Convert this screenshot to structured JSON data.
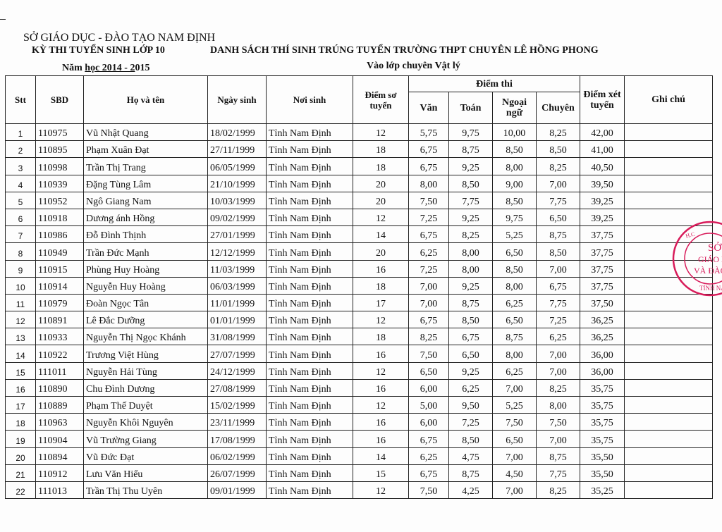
{
  "header": {
    "department": "SỞ GIÁO DỤC - ĐÀO TẠO NAM ĐỊNH",
    "exam": "KỲ THI TUYỂN SINH LỚP 10",
    "title": "DANH SÁCH THÍ SINH TRÚNG TUYỂN TRƯỜNG THPT CHUYÊN LÊ HỒNG PHONG",
    "year_prefix": "Năm ",
    "year_underlined": "học 2014 - 2",
    "year_suffix": "015",
    "class": "Vào lớp chuyên Vật lý"
  },
  "columns": {
    "stt": "Stt",
    "sbd": "SBD",
    "name": "Họ và tên",
    "dob": "Ngày sinh",
    "birthplace": "Nơi sinh",
    "prelim": "Điểm sơ tuyển",
    "scores_group": "Điểm thi",
    "van": "Văn",
    "toan": "Toán",
    "ngoai_ngu": "Ngoại ngữ",
    "chuyen": "Chuyên",
    "total": "Điểm xét tuyển",
    "note": "Ghi chú"
  },
  "rows": [
    {
      "stt": "1",
      "sbd": "110975",
      "name": "Vũ Nhật Quang",
      "dob": "18/02/1999",
      "place": "Tỉnh Nam Định",
      "prelim": "12",
      "van": "5,75",
      "toan": "9,75",
      "nn": "10,00",
      "chuyen": "8,25",
      "total": "42,00",
      "note": ""
    },
    {
      "stt": "2",
      "sbd": "110895",
      "name": "Phạm Xuân Đạt",
      "dob": "27/11/1999",
      "place": "Tỉnh Nam Định",
      "prelim": "18",
      "van": "6,75",
      "toan": "8,75",
      "nn": "8,50",
      "chuyen": "8,50",
      "total": "41,00",
      "note": ""
    },
    {
      "stt": "3",
      "sbd": "110998",
      "name": "Trần Thị Trang",
      "dob": "06/05/1999",
      "place": "Tỉnh Nam Định",
      "prelim": "18",
      "van": "6,75",
      "toan": "9,25",
      "nn": "8,00",
      "chuyen": "8,25",
      "total": "40,50",
      "note": ""
    },
    {
      "stt": "4",
      "sbd": "110939",
      "name": "Đặng Tùng Lâm",
      "dob": "21/10/1999",
      "place": "Tỉnh Nam Định",
      "prelim": "20",
      "van": "8,00",
      "toan": "8,50",
      "nn": "9,00",
      "chuyen": "7,00",
      "total": "39,50",
      "note": ""
    },
    {
      "stt": "5",
      "sbd": "110952",
      "name": "Ngô Giang Nam",
      "dob": "10/03/1999",
      "place": "Tỉnh Nam Định",
      "prelim": "20",
      "van": "7,50",
      "toan": "7,75",
      "nn": "8,50",
      "chuyen": "7,75",
      "total": "39,25",
      "note": ""
    },
    {
      "stt": "6",
      "sbd": "110918",
      "name": "Dương ánh Hồng",
      "dob": "09/02/1999",
      "place": "Tỉnh Nam Định",
      "prelim": "12",
      "van": "7,25",
      "toan": "9,25",
      "nn": "9,75",
      "chuyen": "6,50",
      "total": "39,25",
      "note": ""
    },
    {
      "stt": "7",
      "sbd": "110986",
      "name": "Đỗ Đình Thịnh",
      "dob": "27/01/1999",
      "place": "Tỉnh Nam Định",
      "prelim": "14",
      "van": "6,75",
      "toan": "8,25",
      "nn": "5,25",
      "chuyen": "8,75",
      "total": "37,75",
      "note": ""
    },
    {
      "stt": "8",
      "sbd": "110949",
      "name": "Trần Đức Mạnh",
      "dob": "12/12/1999",
      "place": "Tỉnh Nam Định",
      "prelim": "20",
      "van": "6,25",
      "toan": "8,00",
      "nn": "6,50",
      "chuyen": "8,50",
      "total": "37,75",
      "note": ""
    },
    {
      "stt": "9",
      "sbd": "110915",
      "name": "Phùng Huy Hoàng",
      "dob": "11/03/1999",
      "place": "Tỉnh Nam Định",
      "prelim": "16",
      "van": "7,25",
      "toan": "8,00",
      "nn": "8,50",
      "chuyen": "7,00",
      "total": "37,75",
      "note": ""
    },
    {
      "stt": "10",
      "sbd": "110914",
      "name": "Nguyễn Huy Hoàng",
      "dob": "06/03/1999",
      "place": "Tỉnh Nam Định",
      "prelim": "18",
      "van": "7,00",
      "toan": "9,25",
      "nn": "8,00",
      "chuyen": "6,75",
      "total": "37,75",
      "note": ""
    },
    {
      "stt": "11",
      "sbd": "110979",
      "name": "Đoàn Ngọc Tân",
      "dob": "11/01/1999",
      "place": "Tỉnh Nam Định",
      "prelim": "17",
      "van": "7,00",
      "toan": "8,75",
      "nn": "6,25",
      "chuyen": "7,75",
      "total": "37,50",
      "note": ""
    },
    {
      "stt": "12",
      "sbd": "110891",
      "name": "Lê Đắc Dưỡng",
      "dob": "01/01/1999",
      "place": "Tỉnh Nam Định",
      "prelim": "12",
      "van": "6,75",
      "toan": "8,50",
      "nn": "6,50",
      "chuyen": "7,25",
      "total": "36,25",
      "note": ""
    },
    {
      "stt": "13",
      "sbd": "110933",
      "name": "Nguyễn Thị Ngọc Khánh",
      "dob": "31/08/1999",
      "place": "Tỉnh Nam Định",
      "prelim": "18",
      "van": "8,25",
      "toan": "6,75",
      "nn": "8,75",
      "chuyen": "6,25",
      "total": "36,25",
      "note": ""
    },
    {
      "stt": "14",
      "sbd": "110922",
      "name": "Trương Việt Hùng",
      "dob": "27/07/1999",
      "place": "Tỉnh Nam Định",
      "prelim": "16",
      "van": "7,50",
      "toan": "6,50",
      "nn": "8,00",
      "chuyen": "7,00",
      "total": "36,00",
      "note": ""
    },
    {
      "stt": "15",
      "sbd": "111011",
      "name": "Nguyễn Hải Tùng",
      "dob": "24/12/1999",
      "place": "Tỉnh Nam Định",
      "prelim": "12",
      "van": "6,50",
      "toan": "9,25",
      "nn": "6,25",
      "chuyen": "7,00",
      "total": "36,00",
      "note": ""
    },
    {
      "stt": "16",
      "sbd": "110890",
      "name": "Chu Đình Dương",
      "dob": "27/08/1999",
      "place": "Tỉnh Nam Định",
      "prelim": "16",
      "van": "6,00",
      "toan": "6,25",
      "nn": "7,00",
      "chuyen": "8,25",
      "total": "35,75",
      "note": ""
    },
    {
      "stt": "17",
      "sbd": "110889",
      "name": "Phạm Thế Duyệt",
      "dob": "15/02/1999",
      "place": "Tỉnh Nam Định",
      "prelim": "12",
      "van": "5,00",
      "toan": "9,50",
      "nn": "5,25",
      "chuyen": "8,00",
      "total": "35,75",
      "note": ""
    },
    {
      "stt": "18",
      "sbd": "110963",
      "name": "Nguyễn Khôi Nguyên",
      "dob": "23/11/1999",
      "place": "Tỉnh Nam Định",
      "prelim": "16",
      "van": "6,00",
      "toan": "7,25",
      "nn": "7,50",
      "chuyen": "7,50",
      "total": "35,75",
      "note": ""
    },
    {
      "stt": "19",
      "sbd": "110904",
      "name": "Vũ Trường Giang",
      "dob": "17/08/1999",
      "place": "Tỉnh Nam Định",
      "prelim": "16",
      "van": "6,75",
      "toan": "8,50",
      "nn": "6,50",
      "chuyen": "7,00",
      "total": "35,75",
      "note": ""
    },
    {
      "stt": "20",
      "sbd": "110894",
      "name": "Vũ Đức Đạt",
      "dob": "06/02/1999",
      "place": "Tỉnh Nam Định",
      "prelim": "14",
      "van": "6,25",
      "toan": "4,75",
      "nn": "7,00",
      "chuyen": "8,75",
      "total": "35,50",
      "note": ""
    },
    {
      "stt": "21",
      "sbd": "110912",
      "name": "Lưu Văn Hiểu",
      "dob": "26/07/1999",
      "place": "Tỉnh Nam Định",
      "prelim": "15",
      "van": "6,75",
      "toan": "8,75",
      "nn": "4,50",
      "chuyen": "7,75",
      "total": "35,50",
      "note": ""
    },
    {
      "stt": "22",
      "sbd": "111013",
      "name": "Trần Thị Thu Uyên",
      "dob": "09/01/1999",
      "place": "Tỉnh Nam Định",
      "prelim": "12",
      "van": "7,50",
      "toan": "4,25",
      "nn": "7,00",
      "chuyen": "8,25",
      "total": "35,25",
      "note": ""
    }
  ],
  "stamp": {
    "text_top": "CỘNG HOÀ X.H.C.N",
    "text_center": "SỞ GIÁO DỤC VÀ ĐÀO TẠO",
    "text_bottom": "TỈNH NAM ĐỊNH",
    "color": "#d81b5a"
  }
}
